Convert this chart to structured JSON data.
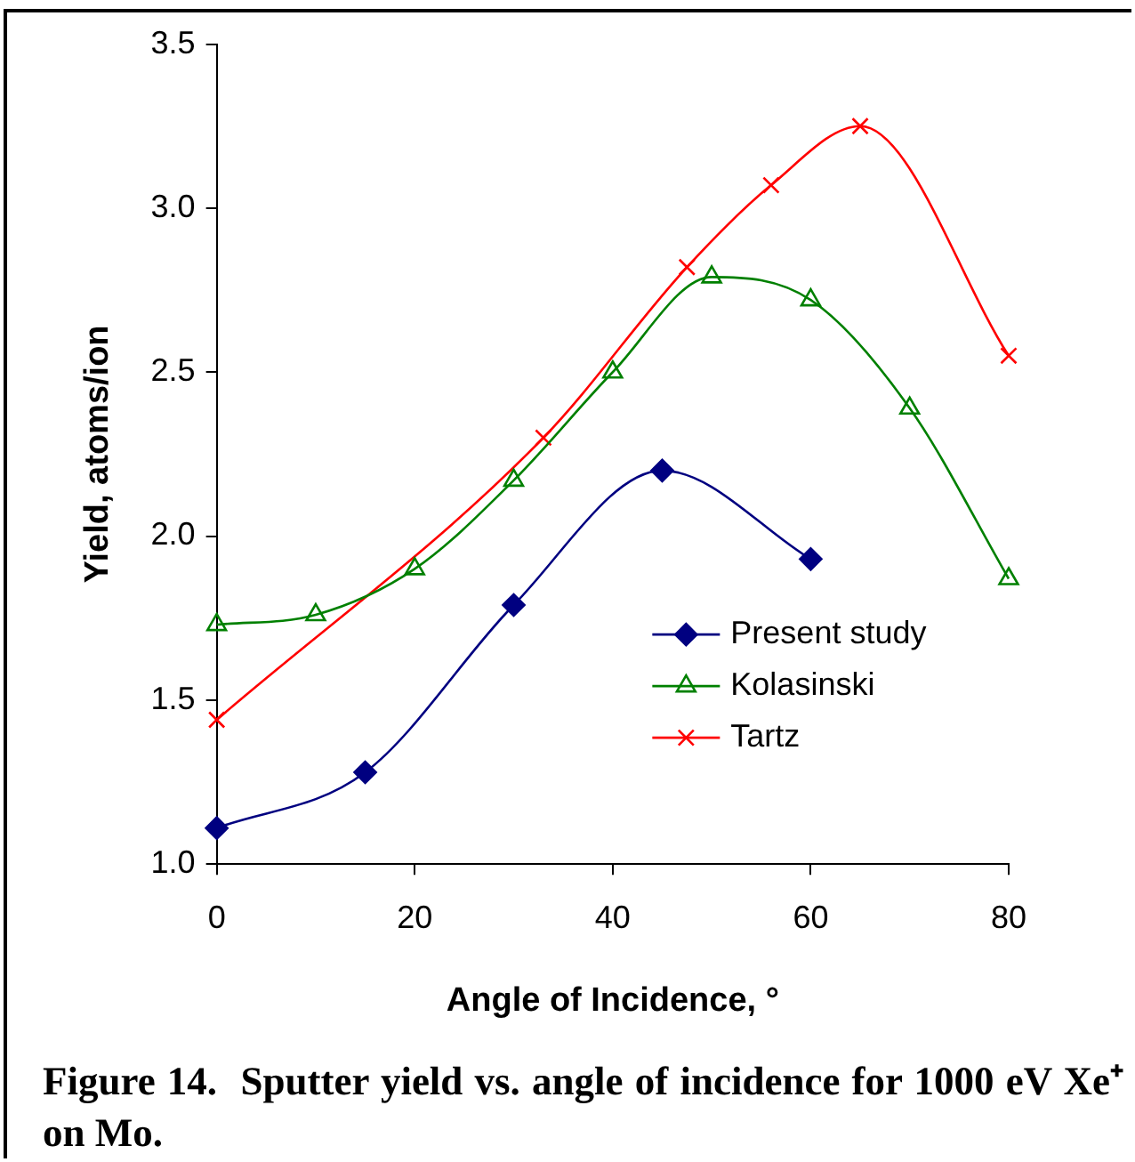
{
  "chart_data": {
    "type": "line",
    "title": "Figure 14.  Sputter yield vs. angle of incidence for 1000 eV Xe⁺ on Mo.",
    "xlabel": "Angle of Incidence, °",
    "ylabel": "Yield, atoms/ion",
    "xlim": [
      0,
      80
    ],
    "xticks": [
      0,
      20,
      40,
      60,
      80
    ],
    "ylim": [
      1.0,
      3.5
    ],
    "yticks": [
      {
        "value": 1.0,
        "label": "1.0"
      },
      {
        "value": 1.5,
        "label": "1.5"
      },
      {
        "value": 2.0,
        "label": "2.0"
      },
      {
        "value": 2.5,
        "label": "2.5"
      },
      {
        "value": 3.0,
        "label": "3.0"
      },
      {
        "value": 3.5,
        "label": "3.5"
      }
    ],
    "grid": false,
    "legend": "right",
    "series": [
      {
        "name": "Present study",
        "color": "#000080",
        "marker": "diamond",
        "x": [
          0,
          15,
          30,
          45,
          60
        ],
        "values": [
          1.11,
          1.28,
          1.79,
          2.2,
          1.93
        ]
      },
      {
        "name": "Kolasinski",
        "color": "#008000",
        "marker": "triangle",
        "x": [
          0,
          10,
          20,
          30,
          40,
          50,
          60,
          70,
          80
        ],
        "values": [
          1.73,
          1.76,
          1.9,
          2.17,
          2.5,
          2.79,
          2.72,
          2.39,
          1.87
        ]
      },
      {
        "name": "Tartz",
        "color": "#ff0000",
        "marker": "cross",
        "x": [
          0,
          33,
          47.5,
          56,
          65,
          80
        ],
        "values": [
          1.44,
          2.3,
          2.82,
          3.07,
          3.25,
          2.55
        ]
      }
    ]
  }
}
